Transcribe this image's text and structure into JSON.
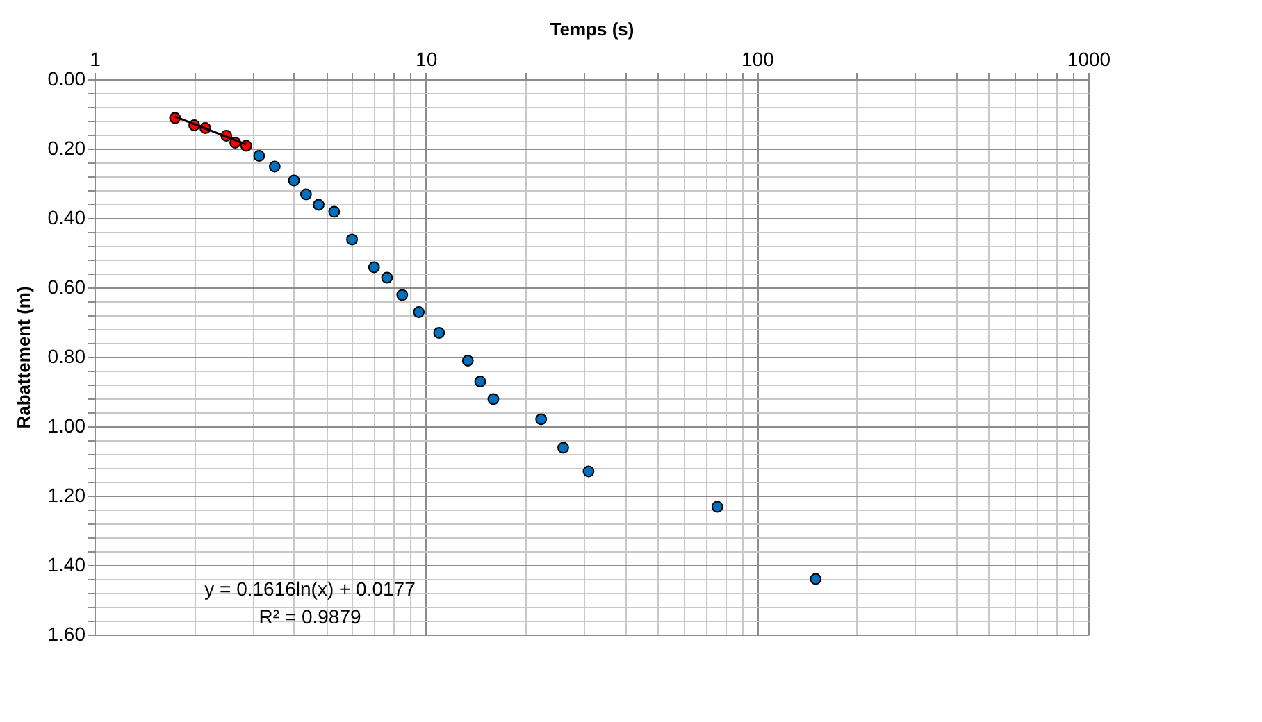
{
  "chart_data": {
    "type": "scatter",
    "xlabel": "Temps (s)",
    "ylabel": "Rabattement (m)",
    "log": "x",
    "grid": true,
    "marker": "circle",
    "xlim": [
      1,
      1000
    ],
    "xticks": [
      1,
      {
        "value": 2,
        "label": null
      },
      {
        "value": 3,
        "label": null
      },
      {
        "value": 4,
        "label": null
      },
      {
        "value": 5,
        "label": null
      },
      {
        "value": 6,
        "label": null
      },
      {
        "value": 7,
        "label": null
      },
      {
        "value": 8,
        "label": null
      },
      {
        "value": 9,
        "label": null
      },
      10,
      {
        "value": 20,
        "label": null
      },
      {
        "value": 30,
        "label": null
      },
      {
        "value": 40,
        "label": null
      },
      {
        "value": 50,
        "label": null
      },
      {
        "value": 60,
        "label": null
      },
      {
        "value": 70,
        "label": null
      },
      {
        "value": 80,
        "label": null
      },
      {
        "value": 90,
        "label": null
      },
      100,
      {
        "value": 200,
        "label": null
      },
      {
        "value": 300,
        "label": null
      },
      {
        "value": 400,
        "label": null
      },
      {
        "value": 500,
        "label": null
      },
      {
        "value": 600,
        "label": null
      },
      {
        "value": 700,
        "label": null
      },
      {
        "value": 800,
        "label": null
      },
      {
        "value": 900,
        "label": null
      },
      1000
    ],
    "ylim": [
      1.6,
      0
    ],
    "yticks": [
      {
        "value": 0,
        "label": "0.00"
      },
      {
        "value": 0.04,
        "label": null
      },
      {
        "value": 0.08,
        "label": null
      },
      {
        "value": 0.12,
        "label": null
      },
      {
        "value": 0.16,
        "label": null
      },
      {
        "value": 0.2,
        "label": "0.20"
      },
      {
        "value": 0.24,
        "label": null
      },
      {
        "value": 0.28,
        "label": null
      },
      {
        "value": 0.32,
        "label": null
      },
      {
        "value": 0.36,
        "label": null
      },
      {
        "value": 0.4,
        "label": "0.40"
      },
      {
        "value": 0.44,
        "label": null
      },
      {
        "value": 0.48,
        "label": null
      },
      {
        "value": 0.52,
        "label": null
      },
      {
        "value": 0.56,
        "label": null
      },
      {
        "value": 0.6,
        "label": "0.60"
      },
      {
        "value": 0.64,
        "label": null
      },
      {
        "value": 0.68,
        "label": null
      },
      {
        "value": 0.72,
        "label": null
      },
      {
        "value": 0.76,
        "label": null
      },
      {
        "value": 0.8,
        "label": "0.80"
      },
      {
        "value": 0.84,
        "label": null
      },
      {
        "value": 0.88,
        "label": null
      },
      {
        "value": 0.92,
        "label": null
      },
      {
        "value": 0.96,
        "label": null
      },
      {
        "value": 1.0,
        "label": "1.00"
      },
      {
        "value": 1.04,
        "label": null
      },
      {
        "value": 1.08,
        "label": null
      },
      {
        "value": 1.12,
        "label": null
      },
      {
        "value": 1.16,
        "label": null
      },
      {
        "value": 1.2,
        "label": "1.20"
      },
      {
        "value": 1.24,
        "label": null
      },
      {
        "value": 1.28,
        "label": null
      },
      {
        "value": 1.32,
        "label": null
      },
      {
        "value": 1.36,
        "label": null
      },
      {
        "value": 1.4,
        "label": "1.40"
      },
      {
        "value": 1.44,
        "label": null
      },
      {
        "value": 1.48,
        "label": null
      },
      {
        "value": 1.52,
        "label": null
      },
      {
        "value": 1.56,
        "label": null
      },
      {
        "value": 1.6,
        "label": "1.60"
      }
    ],
    "series": [
      {
        "type": "scatter",
        "color": "#0070c0",
        "x": [
          3.14,
          3.5,
          4.0,
          4.35,
          4.75,
          5.29,
          5.99,
          6.98,
          7.64,
          8.49,
          9.53,
          10.97,
          13.4,
          14.6,
          16.0,
          22.3,
          26.0,
          31.0,
          75.9,
          150.3
        ],
        "values": [
          0.221,
          0.252,
          0.292,
          0.332,
          0.362,
          0.382,
          0.462,
          0.542,
          0.572,
          0.622,
          0.671,
          0.731,
          0.811,
          0.871,
          0.922,
          0.98,
          1.062,
          1.13,
          1.232,
          1.44
        ]
      },
      {
        "type": "scatter",
        "color": "#ff0000",
        "x": [
          1.75,
          2.0,
          2.16,
          2.5,
          2.66,
          2.87
        ],
        "values": [
          0.112,
          0.133,
          0.141,
          0.163,
          0.183,
          0.192
        ]
      },
      {
        "type": "line",
        "marker": "none",
        "line_style": "solid",
        "color": "#000000",
        "x": [
          1.75,
          2.87
        ],
        "values": [
          0.108,
          0.188
        ]
      }
    ],
    "annotations": [
      "y = 0.1616ln(x) + 0.0177",
      "R² = 0.9879"
    ]
  }
}
